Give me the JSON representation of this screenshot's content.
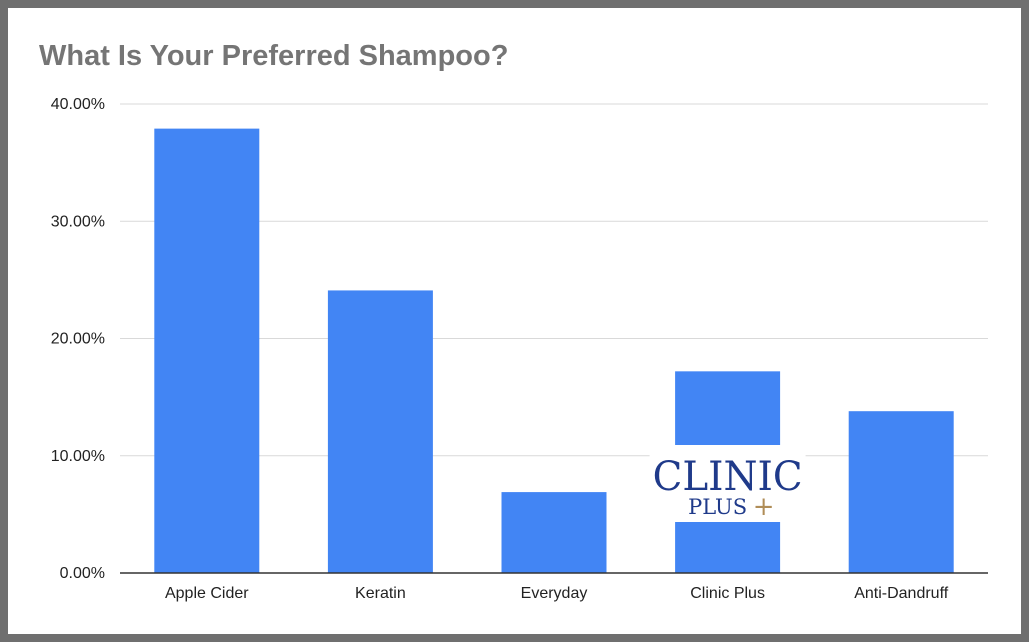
{
  "chart_data": {
    "type": "bar",
    "title": "What Is Your Preferred Shampoo?",
    "xlabel": "",
    "ylabel": "",
    "categories": [
      "Apple Cider",
      "Keratin",
      "Everyday",
      "Clinic Plus",
      "Anti-Dandruff"
    ],
    "values": [
      37.9,
      24.1,
      6.9,
      17.2,
      13.8
    ],
    "ylim": [
      0,
      40
    ],
    "y_ticks": [
      "0.00%",
      "10.00%",
      "20.00%",
      "30.00%",
      "40.00%"
    ],
    "grid": true,
    "legend": "none",
    "bar_color": "#4285f4",
    "annotations": [
      {
        "type": "logo",
        "category": "Clinic Plus",
        "line1": "CLINIC",
        "line2": "PLUS",
        "mark": "+"
      }
    ]
  },
  "colors": {
    "bar": "#4285f4",
    "gridline": "#d9d9d9",
    "axis": "#333333",
    "title": "#757575",
    "logo_text": "#1f3a8a",
    "logo_plus": "#b08d57"
  }
}
